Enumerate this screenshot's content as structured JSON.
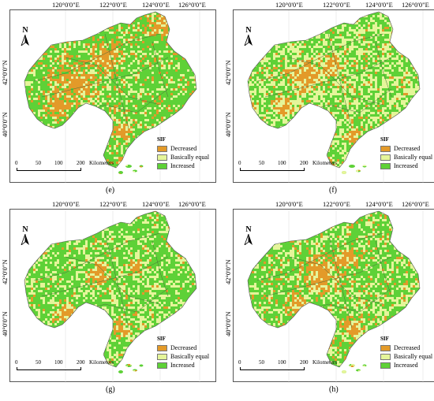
{
  "lon_labels": [
    "120°0'0\"E",
    "122°0'0\"E",
    "124°0'0\"E",
    "126°0'0\"E"
  ],
  "lat_labels": [
    "42°0'0\"N",
    "40°0'0\"N"
  ],
  "north": "N",
  "legend": {
    "title": "SIF",
    "items": [
      {
        "label": "Decreased",
        "color": "#e39a29"
      },
      {
        "label": "Basically equal",
        "color": "#e5f59a"
      },
      {
        "label": "Increased",
        "color": "#5ed137"
      }
    ]
  },
  "scale": {
    "ticks": [
      "0",
      "50",
      "100",
      "200"
    ],
    "unit": "Kilometers"
  },
  "panels": [
    {
      "label": "(e)",
      "decreased_share": 0.3,
      "equal_share": 0.22
    },
    {
      "label": "(f)",
      "decreased_share": 0.18,
      "equal_share": 0.42
    },
    {
      "label": "(g)",
      "decreased_share": 0.15,
      "equal_share": 0.3
    },
    {
      "label": "(h)",
      "decreased_share": 0.25,
      "equal_share": 0.3
    }
  ]
}
